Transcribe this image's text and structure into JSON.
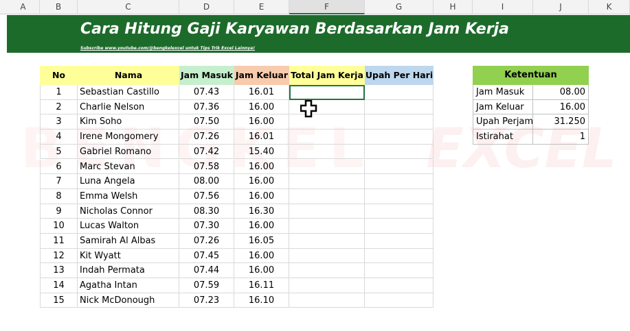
{
  "columns": [
    "A",
    "B",
    "C",
    "D",
    "E",
    "F",
    "G",
    "H",
    "I",
    "J",
    "K"
  ],
  "banner": {
    "title": "Cara Hitung Gaji Karyawan Berdasarkan Jam Kerja",
    "subtitle": "Subscribe www.youtube.com/@bengkelexcel untuk Tips Trik Excel Lainnya!"
  },
  "watermark": [
    "BENGKEL",
    "EXCEL"
  ],
  "table": {
    "headers": [
      "No",
      "Nama",
      "Jam Masuk",
      "Jam Keluar",
      "Total Jam Kerja",
      "Upah Per Hari"
    ],
    "rows": [
      [
        1,
        "Sebastian Castillo",
        "07.43",
        "16.01"
      ],
      [
        2,
        "Charlie Nelson",
        "07.36",
        "16.00"
      ],
      [
        3,
        "Kim Soho",
        "07.50",
        "16.00"
      ],
      [
        4,
        "Irene Mongomery",
        "07.26",
        "16.01"
      ],
      [
        5,
        "Gabriel Romano",
        "07.42",
        "15.40"
      ],
      [
        6,
        "Marc Stevan",
        "07.58",
        "16.00"
      ],
      [
        7,
        "Luna Angela",
        "08.00",
        "16.00"
      ],
      [
        8,
        "Emma Welsh",
        "07.56",
        "16.00"
      ],
      [
        9,
        "Nicholas Connor",
        "08.30",
        "16.30"
      ],
      [
        10,
        "Lucas Walton",
        "07.30",
        "16.00"
      ],
      [
        11,
        "Samirah Al Albas",
        "07.26",
        "16.05"
      ],
      [
        12,
        "Kit Wyatt",
        "07.45",
        "16.00"
      ],
      [
        13,
        "Indah Permata",
        "07.44",
        "16.00"
      ],
      [
        14,
        "Agatha Intan",
        "07.59",
        "16.11"
      ],
      [
        15,
        "Nick McDonough",
        "07.23",
        "16.10"
      ]
    ]
  },
  "ketentuan": {
    "title": "Ketentuan",
    "rows": [
      [
        "Jam Masuk",
        "08.00"
      ],
      [
        "Jam Keluar",
        "16.00"
      ],
      [
        "Upah Perjam",
        "31.250"
      ],
      [
        "Istirahat",
        1
      ]
    ]
  }
}
